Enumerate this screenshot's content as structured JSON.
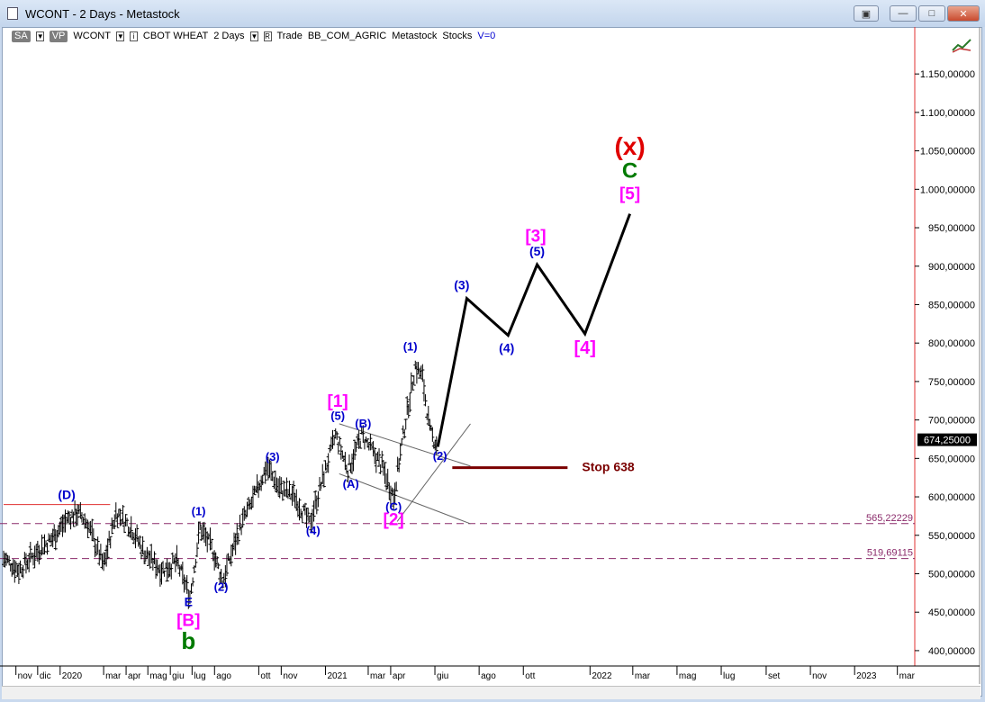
{
  "window": {
    "title": "WCONT - 2 Days - Metastock"
  },
  "toolbar": {
    "sa": "SA",
    "vp": "VP",
    "symbol": "WCONT",
    "name": "CBOT WHEAT",
    "period": "2 Days",
    "trade": "Trade",
    "source": "BB_COM_AGRIC",
    "app": "Metastock",
    "kind": "Stocks",
    "v": "V=0"
  },
  "colors": {
    "wave_blue": "#0000cc",
    "wave_magenta": "#ff00ff",
    "wave_green": "#007a00",
    "wave_red": "#e00000",
    "stop_line": "#7a0000",
    "price_bars": "#000000",
    "fib_lines": "#8a2a6a"
  },
  "chart_data": {
    "type": "line",
    "title": "",
    "y_axis": {
      "min": 380000,
      "max": 1190000,
      "tick_values": [
        400000,
        450000,
        500000,
        550000,
        600000,
        650000,
        700000,
        750000,
        800000,
        850000,
        900000,
        950000,
        1000000,
        1050000,
        1100000,
        1150000
      ],
      "tick_labels": [
        "400,00000",
        "450,00000",
        "500,00000",
        "550,00000",
        "600,00000",
        "650,00000",
        "700,00000",
        "750,00000",
        "800,00000",
        "850,00000",
        "900,00000",
        "950,00000",
        "1.000,00000",
        "1.050,00000",
        "1.100,00000",
        "1.150,00000"
      ]
    },
    "x_axis": {
      "start": "2019-10-15",
      "end": "2023-03-25",
      "tick_dates": [
        "2019-11-01",
        "2019-12-01",
        "2020-01-01",
        "2020-03-01",
        "2020-04-01",
        "2020-05-01",
        "2020-06-01",
        "2020-07-01",
        "2020-08-01",
        "2020-10-01",
        "2020-11-01",
        "2021-01-01",
        "2021-03-01",
        "2021-04-01",
        "2021-06-01",
        "2021-08-01",
        "2021-10-01",
        "2022-01-01",
        "2022-03-01",
        "2022-05-01",
        "2022-07-01",
        "2022-09-01",
        "2022-11-01",
        "2023-01-01",
        "2023-03-01"
      ],
      "tick_labels": [
        "nov",
        "dic",
        "2020",
        "mar",
        "apr",
        "mag",
        "giu",
        "lug",
        "ago",
        "ott",
        "nov",
        "2021",
        "mar",
        "apr",
        "giu",
        "ago",
        "ott",
        "2022",
        "mar",
        "mag",
        "lug",
        "set",
        "nov",
        "2023",
        "mar"
      ]
    },
    "last_price": {
      "value": 674250,
      "label": "674,25000"
    },
    "price_series": {
      "name": "",
      "points": [
        [
          "2019-10-15",
          520000
        ],
        [
          "2019-11-05",
          505000
        ],
        [
          "2019-12-01",
          530000
        ],
        [
          "2019-12-20",
          545000
        ],
        [
          "2020-01-10",
          570000
        ],
        [
          "2020-01-25",
          580000
        ],
        [
          "2020-02-08",
          565000
        ],
        [
          "2020-03-01",
          510000
        ],
        [
          "2020-03-18",
          580000
        ],
        [
          "2020-04-08",
          560000
        ],
        [
          "2020-04-28",
          525000
        ],
        [
          "2020-05-20",
          505000
        ],
        [
          "2020-06-10",
          515000
        ],
        [
          "2020-06-28",
          470000
        ],
        [
          "2020-07-12",
          560000
        ],
        [
          "2020-07-30",
          530000
        ],
        [
          "2020-08-12",
          490000
        ],
        [
          "2020-09-05",
          560000
        ],
        [
          "2020-09-25",
          600000
        ],
        [
          "2020-10-12",
          640000
        ],
        [
          "2020-10-30",
          610000
        ],
        [
          "2020-11-20",
          600000
        ],
        [
          "2020-12-10",
          565000
        ],
        [
          "2021-01-15",
          680000
        ],
        [
          "2021-02-01",
          635000
        ],
        [
          "2021-02-20",
          680000
        ],
        [
          "2021-03-20",
          640000
        ],
        [
          "2021-04-05",
          600000
        ],
        [
          "2021-04-20",
          690000
        ],
        [
          "2021-05-05",
          770000
        ],
        [
          "2021-05-15",
          755000
        ],
        [
          "2021-05-25",
          685000
        ],
        [
          "2021-06-05",
          665000
        ]
      ]
    },
    "projection": {
      "points": [
        [
          "2021-06-05",
          665000
        ],
        [
          "2021-07-15",
          858000
        ],
        [
          "2021-09-10",
          810000
        ],
        [
          "2021-10-20",
          902000
        ],
        [
          "2021-12-25",
          812000
        ],
        [
          "2022-02-25",
          968000
        ]
      ]
    },
    "channel_lines": [
      {
        "from": [
          "2021-01-20",
          695000
        ],
        "to": [
          "2021-07-20",
          640000
        ]
      },
      {
        "from": [
          "2021-01-20",
          630000
        ],
        "to": [
          "2021-07-20",
          565000
        ]
      },
      {
        "from": [
          "2021-04-10",
          568000
        ],
        "to": [
          "2021-07-20",
          695000
        ]
      }
    ],
    "horizontal_lines": [
      {
        "value": 565222,
        "label": "565,22229"
      },
      {
        "value": 519691,
        "label": "519,69115"
      }
    ],
    "red_line": {
      "from": "2019-10-15",
      "to": "2020-03-10",
      "value": 590000
    },
    "stop": {
      "from": "2021-06-25",
      "to": "2021-12-01",
      "value": 638000,
      "label": "Stop 638"
    },
    "wave_labels": [
      {
        "text": "(D)",
        "x": "2020-01-10",
        "y": 597000,
        "color": "blue",
        "size": 14
      },
      {
        "text": "(1)",
        "x": "2020-07-10",
        "y": 576000,
        "color": "blue",
        "size": 13
      },
      {
        "text": "(2)",
        "x": "2020-08-10",
        "y": 478000,
        "color": "blue",
        "size": 13
      },
      {
        "text": "E",
        "x": "2020-06-26",
        "y": 458000,
        "color": "blue",
        "size": 14
      },
      {
        "text": "[B]",
        "x": "2020-06-26",
        "y": 432000,
        "color": "magenta",
        "size": 19
      },
      {
        "text": "b",
        "x": "2020-06-26",
        "y": 402000,
        "color": "green",
        "size": 26
      },
      {
        "text": "(3)",
        "x": "2020-10-20",
        "y": 647000,
        "color": "blue",
        "size": 13
      },
      {
        "text": "(4)",
        "x": "2020-12-15",
        "y": 551000,
        "color": "blue",
        "size": 13
      },
      {
        "text": "(5)",
        "x": "2021-01-18",
        "y": 700000,
        "color": "blue",
        "size": 13
      },
      {
        "text": "[1]",
        "x": "2021-01-18",
        "y": 717000,
        "color": "magenta",
        "size": 19
      },
      {
        "text": "(A)",
        "x": "2021-02-05",
        "y": 612000,
        "color": "blue",
        "size": 13
      },
      {
        "text": "(B)",
        "x": "2021-02-22",
        "y": 690000,
        "color": "blue",
        "size": 13
      },
      {
        "text": "(C)",
        "x": "2021-04-05",
        "y": 582000,
        "color": "blue",
        "size": 13
      },
      {
        "text": "[2]",
        "x": "2021-04-05",
        "y": 563000,
        "color": "magenta",
        "size": 19
      },
      {
        "text": "(1)",
        "x": "2021-04-28",
        "y": 790000,
        "color": "blue",
        "size": 13
      },
      {
        "text": "(2)",
        "x": "2021-06-08",
        "y": 648000,
        "color": "blue",
        "size": 13
      },
      {
        "text": "(3)",
        "x": "2021-07-08",
        "y": 870000,
        "color": "blue",
        "size": 14
      },
      {
        "text": "(4)",
        "x": "2021-09-08",
        "y": 788000,
        "color": "blue",
        "size": 14
      },
      {
        "text": "(5)",
        "x": "2021-10-20",
        "y": 914000,
        "color": "blue",
        "size": 14
      },
      {
        "text": "[3]",
        "x": "2021-10-18",
        "y": 932000,
        "color": "magenta",
        "size": 19
      },
      {
        "text": "[4]",
        "x": "2021-12-25",
        "y": 786000,
        "color": "magenta",
        "size": 20
      },
      {
        "text": "[5]",
        "x": "2022-02-25",
        "y": 987000,
        "color": "magenta",
        "size": 19
      },
      {
        "text": "C",
        "x": "2022-02-25",
        "y": 1015000,
        "color": "green",
        "size": 24
      },
      {
        "text": "(x)",
        "x": "2022-02-25",
        "y": 1045000,
        "color": "red",
        "size": 28
      }
    ]
  }
}
